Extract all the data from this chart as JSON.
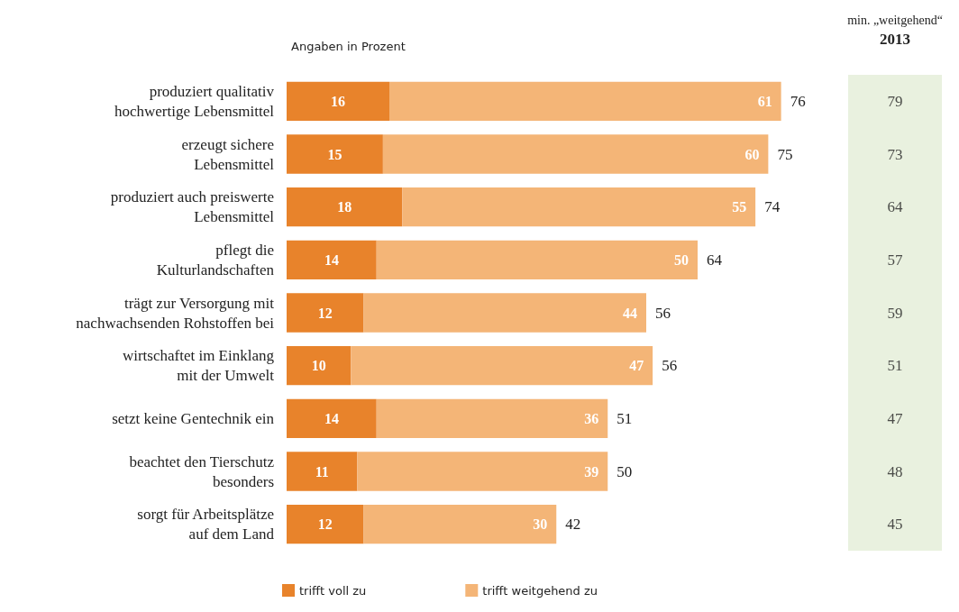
{
  "chart_data": [
    {
      "type": "bar",
      "orientation": "horizontal",
      "stacked": true,
      "subtitle": "Angaben in Prozent",
      "categories": [
        "produziert qualitativ\nhochwertige Lebensmittel",
        "erzeugt sichere\nLebensmittel",
        "produziert auch preiswerte\nLebensmittel",
        "pflegt die\nKulturlandschaften",
        "trägt zur Versorgung mit\nnachwachsenden Rohstoffen bei",
        "wirtschaftet im Einklang\nmit der Umwelt",
        "setzt keine Gentechnik ein",
        "beachtet den Tierschutz\nbesonders",
        "sorgt für Arbeitsplätze\nauf dem Land"
      ],
      "series": [
        {
          "name": "trifft voll zu",
          "color": "#e8832b",
          "values": [
            16,
            15,
            18,
            14,
            12,
            10,
            14,
            11,
            12
          ]
        },
        {
          "name": "trifft weitgehend zu",
          "color": "#f4b577",
          "values": [
            61,
            60,
            55,
            50,
            44,
            47,
            36,
            39,
            30
          ]
        }
      ],
      "totals": [
        "76",
        "75",
        "74",
        "64",
        "56",
        "56",
        "51",
        "50",
        "42"
      ],
      "data_labels": true,
      "legend": "bottom left"
    },
    {
      "type": "other",
      "title": "min. „weitgehend“",
      "subtitle": "2013",
      "color": "#e9f1df",
      "values": [
        79,
        73,
        64,
        57,
        59,
        51,
        47,
        48,
        45
      ],
      "data_labels": true
    }
  ]
}
